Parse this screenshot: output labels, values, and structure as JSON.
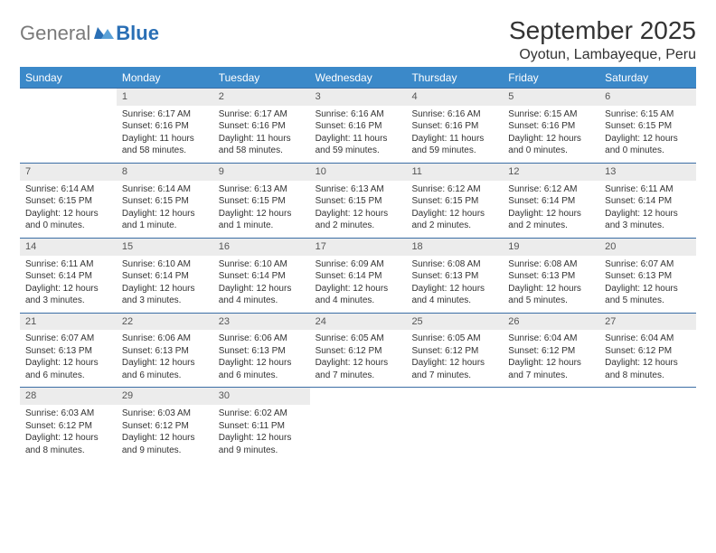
{
  "logo": {
    "gray": "General",
    "blue": "Blue"
  },
  "title": "September 2025",
  "location": "Oyotun, Lambayeque, Peru",
  "colors": {
    "header_bg": "#3b89c9",
    "header_text": "#ffffff",
    "daynum_bg": "#ececec",
    "rule": "#3b6ea5",
    "logo_gray": "#7a7a7a",
    "logo_blue": "#2a6fb5",
    "body_text": "#333333"
  },
  "day_headers": [
    "Sunday",
    "Monday",
    "Tuesday",
    "Wednesday",
    "Thursday",
    "Friday",
    "Saturday"
  ],
  "weeks": [
    [
      {
        "n": "",
        "rise": "",
        "set": "",
        "dl": ""
      },
      {
        "n": "1",
        "rise": "Sunrise: 6:17 AM",
        "set": "Sunset: 6:16 PM",
        "dl": "Daylight: 11 hours and 58 minutes."
      },
      {
        "n": "2",
        "rise": "Sunrise: 6:17 AM",
        "set": "Sunset: 6:16 PM",
        "dl": "Daylight: 11 hours and 58 minutes."
      },
      {
        "n": "3",
        "rise": "Sunrise: 6:16 AM",
        "set": "Sunset: 6:16 PM",
        "dl": "Daylight: 11 hours and 59 minutes."
      },
      {
        "n": "4",
        "rise": "Sunrise: 6:16 AM",
        "set": "Sunset: 6:16 PM",
        "dl": "Daylight: 11 hours and 59 minutes."
      },
      {
        "n": "5",
        "rise": "Sunrise: 6:15 AM",
        "set": "Sunset: 6:16 PM",
        "dl": "Daylight: 12 hours and 0 minutes."
      },
      {
        "n": "6",
        "rise": "Sunrise: 6:15 AM",
        "set": "Sunset: 6:15 PM",
        "dl": "Daylight: 12 hours and 0 minutes."
      }
    ],
    [
      {
        "n": "7",
        "rise": "Sunrise: 6:14 AM",
        "set": "Sunset: 6:15 PM",
        "dl": "Daylight: 12 hours and 0 minutes."
      },
      {
        "n": "8",
        "rise": "Sunrise: 6:14 AM",
        "set": "Sunset: 6:15 PM",
        "dl": "Daylight: 12 hours and 1 minute."
      },
      {
        "n": "9",
        "rise": "Sunrise: 6:13 AM",
        "set": "Sunset: 6:15 PM",
        "dl": "Daylight: 12 hours and 1 minute."
      },
      {
        "n": "10",
        "rise": "Sunrise: 6:13 AM",
        "set": "Sunset: 6:15 PM",
        "dl": "Daylight: 12 hours and 2 minutes."
      },
      {
        "n": "11",
        "rise": "Sunrise: 6:12 AM",
        "set": "Sunset: 6:15 PM",
        "dl": "Daylight: 12 hours and 2 minutes."
      },
      {
        "n": "12",
        "rise": "Sunrise: 6:12 AM",
        "set": "Sunset: 6:14 PM",
        "dl": "Daylight: 12 hours and 2 minutes."
      },
      {
        "n": "13",
        "rise": "Sunrise: 6:11 AM",
        "set": "Sunset: 6:14 PM",
        "dl": "Daylight: 12 hours and 3 minutes."
      }
    ],
    [
      {
        "n": "14",
        "rise": "Sunrise: 6:11 AM",
        "set": "Sunset: 6:14 PM",
        "dl": "Daylight: 12 hours and 3 minutes."
      },
      {
        "n": "15",
        "rise": "Sunrise: 6:10 AM",
        "set": "Sunset: 6:14 PM",
        "dl": "Daylight: 12 hours and 3 minutes."
      },
      {
        "n": "16",
        "rise": "Sunrise: 6:10 AM",
        "set": "Sunset: 6:14 PM",
        "dl": "Daylight: 12 hours and 4 minutes."
      },
      {
        "n": "17",
        "rise": "Sunrise: 6:09 AM",
        "set": "Sunset: 6:14 PM",
        "dl": "Daylight: 12 hours and 4 minutes."
      },
      {
        "n": "18",
        "rise": "Sunrise: 6:08 AM",
        "set": "Sunset: 6:13 PM",
        "dl": "Daylight: 12 hours and 4 minutes."
      },
      {
        "n": "19",
        "rise": "Sunrise: 6:08 AM",
        "set": "Sunset: 6:13 PM",
        "dl": "Daylight: 12 hours and 5 minutes."
      },
      {
        "n": "20",
        "rise": "Sunrise: 6:07 AM",
        "set": "Sunset: 6:13 PM",
        "dl": "Daylight: 12 hours and 5 minutes."
      }
    ],
    [
      {
        "n": "21",
        "rise": "Sunrise: 6:07 AM",
        "set": "Sunset: 6:13 PM",
        "dl": "Daylight: 12 hours and 6 minutes."
      },
      {
        "n": "22",
        "rise": "Sunrise: 6:06 AM",
        "set": "Sunset: 6:13 PM",
        "dl": "Daylight: 12 hours and 6 minutes."
      },
      {
        "n": "23",
        "rise": "Sunrise: 6:06 AM",
        "set": "Sunset: 6:13 PM",
        "dl": "Daylight: 12 hours and 6 minutes."
      },
      {
        "n": "24",
        "rise": "Sunrise: 6:05 AM",
        "set": "Sunset: 6:12 PM",
        "dl": "Daylight: 12 hours and 7 minutes."
      },
      {
        "n": "25",
        "rise": "Sunrise: 6:05 AM",
        "set": "Sunset: 6:12 PM",
        "dl": "Daylight: 12 hours and 7 minutes."
      },
      {
        "n": "26",
        "rise": "Sunrise: 6:04 AM",
        "set": "Sunset: 6:12 PM",
        "dl": "Daylight: 12 hours and 7 minutes."
      },
      {
        "n": "27",
        "rise": "Sunrise: 6:04 AM",
        "set": "Sunset: 6:12 PM",
        "dl": "Daylight: 12 hours and 8 minutes."
      }
    ],
    [
      {
        "n": "28",
        "rise": "Sunrise: 6:03 AM",
        "set": "Sunset: 6:12 PM",
        "dl": "Daylight: 12 hours and 8 minutes."
      },
      {
        "n": "29",
        "rise": "Sunrise: 6:03 AM",
        "set": "Sunset: 6:12 PM",
        "dl": "Daylight: 12 hours and 9 minutes."
      },
      {
        "n": "30",
        "rise": "Sunrise: 6:02 AM",
        "set": "Sunset: 6:11 PM",
        "dl": "Daylight: 12 hours and 9 minutes."
      },
      {
        "n": "",
        "rise": "",
        "set": "",
        "dl": ""
      },
      {
        "n": "",
        "rise": "",
        "set": "",
        "dl": ""
      },
      {
        "n": "",
        "rise": "",
        "set": "",
        "dl": ""
      },
      {
        "n": "",
        "rise": "",
        "set": "",
        "dl": ""
      }
    ]
  ]
}
